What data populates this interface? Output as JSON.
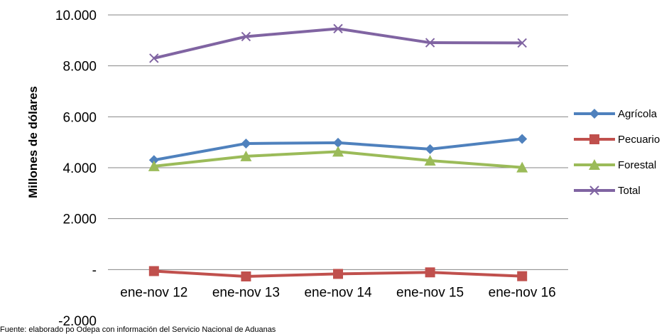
{
  "chart_data": {
    "type": "line",
    "categories": [
      "ene-nov 12",
      "ene-nov 13",
      "ene-nov 14",
      "ene-nov 15",
      "ene-nov 16"
    ],
    "series": [
      {
        "name": "Agrícola",
        "color": "#4F81BD",
        "marker": "diamond",
        "values": [
          4300,
          4950,
          4980,
          4730,
          5130
        ]
      },
      {
        "name": "Pecuario",
        "color": "#C0504D",
        "marker": "square",
        "values": [
          -60,
          -270,
          -170,
          -110,
          -260
        ]
      },
      {
        "name": "Forestal",
        "color": "#9BBB59",
        "marker": "triangle",
        "values": [
          4060,
          4450,
          4630,
          4280,
          4010
        ]
      },
      {
        "name": "Total",
        "color": "#8064A2",
        "marker": "x",
        "values": [
          8300,
          9150,
          9460,
          8910,
          8900
        ]
      }
    ],
    "ylabel": "Millones de dólares",
    "ylim": [
      -2000,
      10000
    ],
    "yticks": [
      10000,
      8000,
      6000,
      4000,
      2000,
      0,
      -2000
    ],
    "ytick_labels": [
      "10.000",
      "8.000",
      "6.000",
      "4.000",
      "2.000",
      "-",
      "-2.000"
    ],
    "grid": true,
    "legend_position": "right",
    "source": "Fuente:  elaborado po Odepa con información del Servicio Nacional de Aduanas"
  }
}
